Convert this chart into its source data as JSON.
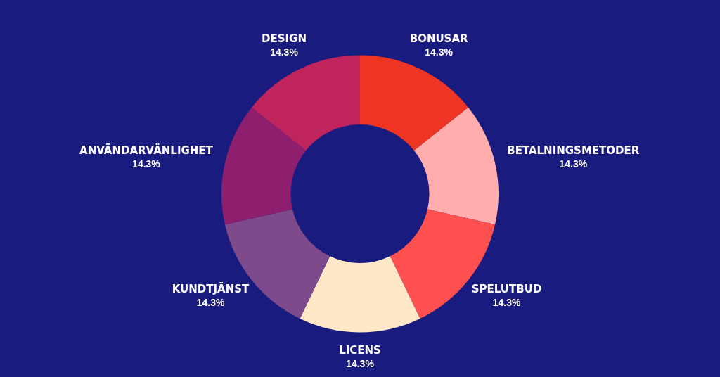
{
  "chart_data": {
    "type": "donut",
    "categories": [
      "BONUSAR",
      "BETALNINGSMETODER",
      "SPELUTBUD",
      "LICENS",
      "KUNDTJÄNST",
      "ANVÄNDARVÄNLIGHET",
      "DESIGN"
    ],
    "values": [
      14.3,
      14.3,
      14.3,
      14.3,
      14.3,
      14.3,
      14.3
    ],
    "value_labels": [
      "14.3%",
      "14.3%",
      "14.3%",
      "14.3%",
      "14.3%",
      "14.3%",
      "14.3%"
    ],
    "colors": [
      "#ee3524",
      "#ffadad",
      "#ff5050",
      "#ffe8c8",
      "#7f4a8c",
      "#8e1f6e",
      "#c0245c"
    ],
    "legend": false
  }
}
